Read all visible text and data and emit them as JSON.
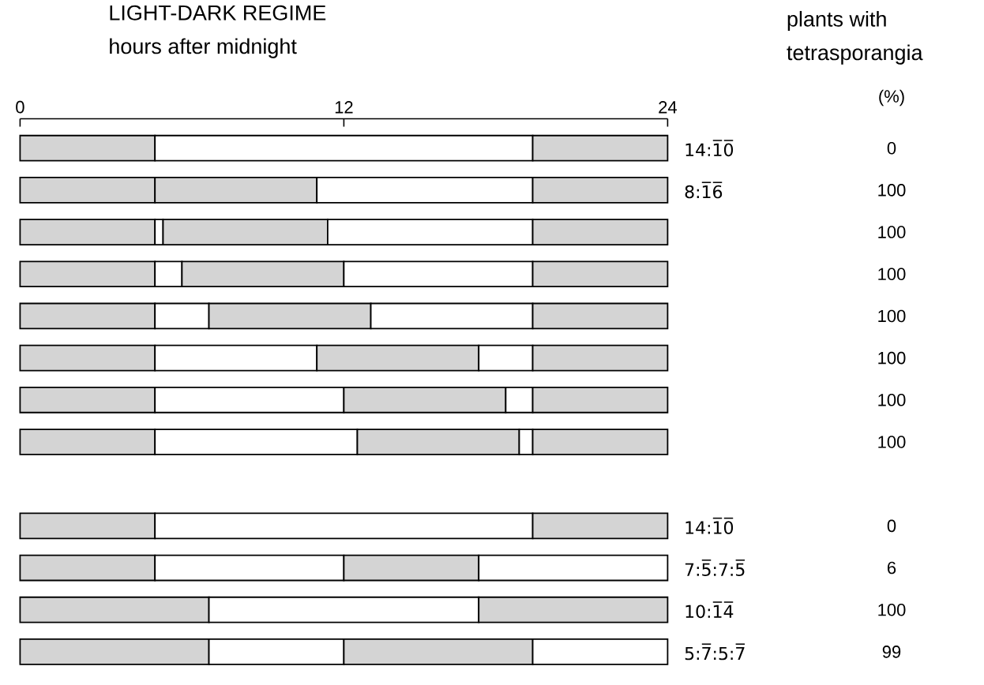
{
  "chart_data": {
    "type": "bar",
    "orientation": "horizontal",
    "stacked": true,
    "title": "LIGHT-DARK REGIME",
    "xlabel": "hours after midnight",
    "categories": [
      "14:1̅0̅",
      "8:1̅6̅",
      null,
      null,
      null,
      null,
      null,
      null,
      null,
      "14:1̅0̅",
      "7:5̅:7:5̅",
      "10:1̅4̅",
      "5:7̅:5:7̅"
    ],
    "series": [
      {
        "values": [
          5,
          5,
          5,
          5,
          5,
          5,
          5,
          5,
          null,
          5,
          5,
          7,
          7
        ],
        "colors": [
          "#d4d4d4",
          "#d4d4d4",
          "#d4d4d4",
          "#d4d4d4",
          "#d4d4d4",
          "#d4d4d4",
          "#d4d4d4",
          "#d4d4d4",
          null,
          "#d4d4d4",
          "#d4d4d4",
          "#d4d4d4",
          "#d4d4d4"
        ]
      },
      {
        "values": [
          14,
          6,
          0.3,
          1,
          2,
          6,
          7,
          7.5,
          null,
          14,
          7,
          10,
          5
        ],
        "colors": [
          "#ffffff",
          "#d4d4d4",
          "#ffffff",
          "#ffffff",
          "#ffffff",
          "#ffffff",
          "#ffffff",
          "#ffffff",
          null,
          "#ffffff",
          "#ffffff",
          "#ffffff",
          "#ffffff"
        ]
      },
      {
        "values": [
          5,
          8,
          6.1,
          6,
          6,
          6,
          6,
          6,
          null,
          5,
          5,
          7,
          7
        ],
        "colors": [
          "#d4d4d4",
          "#ffffff",
          "#d4d4d4",
          "#d4d4d4",
          "#d4d4d4",
          "#d4d4d4",
          "#d4d4d4",
          "#d4d4d4",
          null,
          "#d4d4d4",
          "#d4d4d4",
          "#d4d4d4",
          "#d4d4d4"
        ]
      },
      {
        "values": [
          null,
          5,
          7.6,
          7,
          6,
          2,
          1,
          0.5,
          null,
          null,
          7,
          null,
          5
        ],
        "colors": [
          null,
          "#d4d4d4",
          "#ffffff",
          "#ffffff",
          "#ffffff",
          "#ffffff",
          "#ffffff",
          "#ffffff",
          null,
          null,
          "#ffffff",
          null,
          "#ffffff"
        ]
      },
      {
        "values": [
          null,
          null,
          5,
          5,
          5,
          5,
          5,
          5,
          null,
          null,
          null,
          null,
          null
        ],
        "colors": [
          null,
          null,
          "#d4d4d4",
          "#d4d4d4",
          "#d4d4d4",
          "#d4d4d4",
          "#d4d4d4",
          "#d4d4d4",
          null,
          null,
          null,
          null,
          null
        ]
      }
    ],
    "xlim": [
      0,
      24
    ],
    "xticks": [
      0,
      12,
      24
    ],
    "annotations": [
      "plants with",
      "tetrasporangia",
      "(%)",
      "0",
      "100",
      "100",
      "100",
      "100",
      "100",
      "100",
      "100",
      "0",
      "6",
      "100",
      "99"
    ]
  }
}
